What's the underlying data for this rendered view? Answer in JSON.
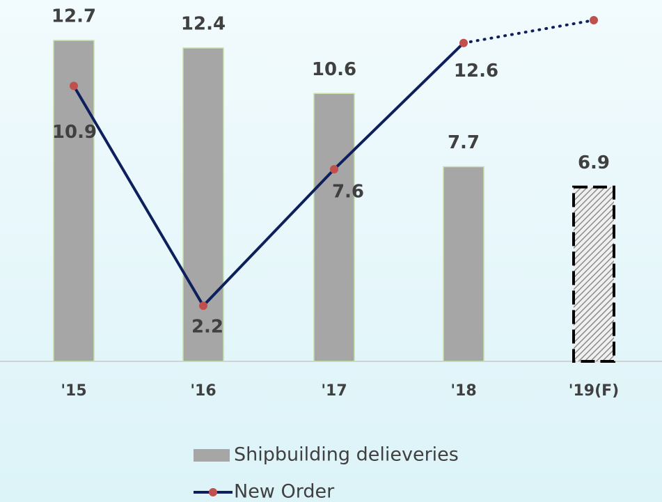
{
  "chart_data": {
    "type": "bar-line",
    "categories": [
      "'15",
      "'16",
      "'17",
      "'18",
      "'19(F)"
    ],
    "series": [
      {
        "name": "Shipbuilding delieveries",
        "type": "bar",
        "color": "#a6a6a6",
        "values": [
          12.7,
          12.4,
          10.6,
          7.7,
          6.9
        ],
        "forecast_start": 4
      },
      {
        "name": "New Order",
        "type": "line",
        "color": "#0d1f5c",
        "marker_color": "#c0504d",
        "values": [
          10.9,
          2.2,
          7.6,
          12.6,
          13.5
        ],
        "value_labels": [
          "10.9",
          "2.2",
          "7.6",
          "12.6",
          null
        ],
        "forecast_start": 4
      }
    ],
    "ylim": [
      0,
      14.3
    ]
  }
}
